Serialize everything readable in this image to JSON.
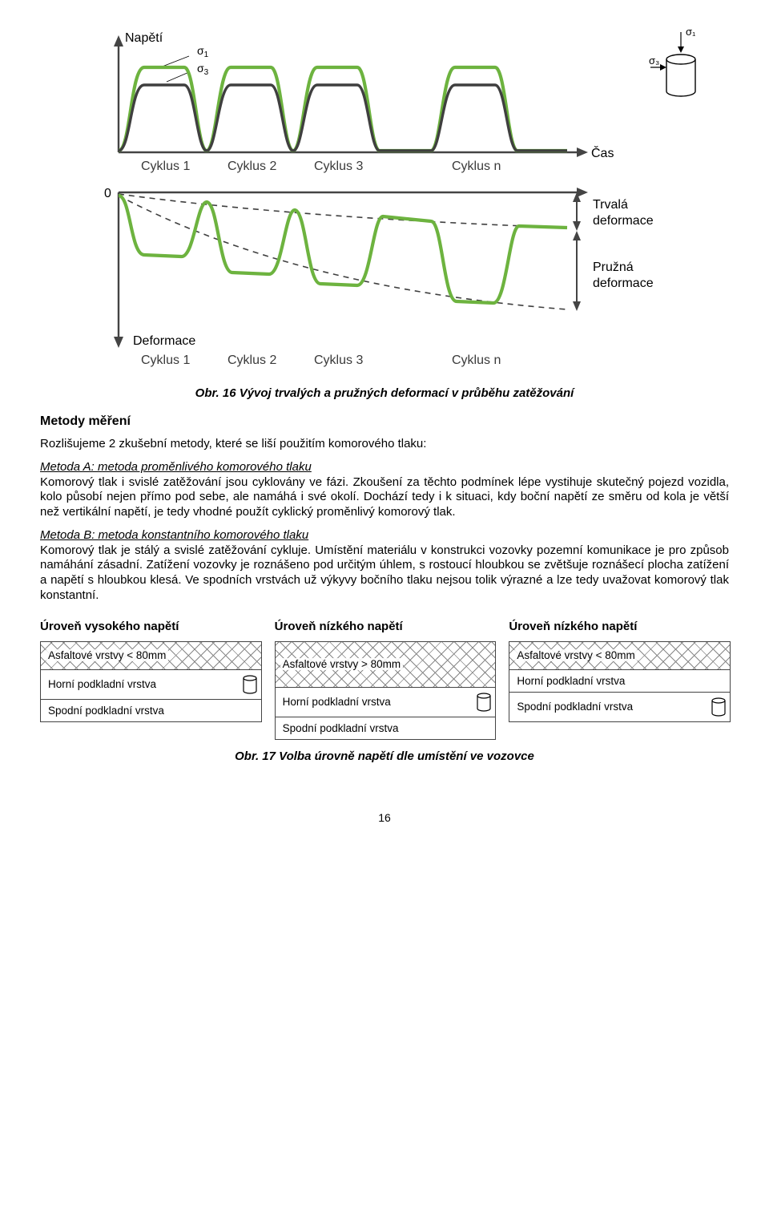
{
  "fig16": {
    "yTopLabel": "Napětí",
    "sigma1": "σ",
    "sigma1sub": "1",
    "sigma3": "σ",
    "sigma3sub": "3",
    "xRightLabel": "Čas",
    "zeroLabel": "0",
    "yBottomLabel": "Deformace",
    "cycles": [
      "Cyklus 1",
      "Cyklus 2",
      "Cyklus 3",
      "Cyklus n"
    ],
    "rightLabels": {
      "trvala": "Trvalá",
      "trvala2": "deformace",
      "pruzna": "Pružná",
      "pruzna2": "deformace"
    },
    "colors": {
      "green": "#6db33f",
      "dark": "#3f3f3f",
      "dashed": "#3f3f3f",
      "grayAxis": "#444"
    },
    "caption": "Obr. 16 Vývoj trvalých a pružných deformací v průběhu zatěžování"
  },
  "text": {
    "metodyHead": "Metody měření",
    "intro": "Rozlišujeme 2 zkušební metody, které se liší použitím komorového tlaku:",
    "metodaA_title": "Metoda A: metoda proměnlivého komorového tlaku",
    "metodaA_body": "Komorový tlak i svislé zatěžování jsou cyklovány ve fázi. Zkoušení za těchto podmínek lépe vystihuje skutečný pojezd vozidla, kolo působí nejen přímo pod sebe, ale namáhá i své okolí. Dochází tedy i k situaci, kdy boční napětí ze směru od kola je větší než vertikální napětí, je tedy vhodné použít cyklický proměnlivý komorový tlak.",
    "metodaB_title": "Metoda B: metoda konstantního komorového tlaku",
    "metodaB_body": "Komorový tlak je stálý a svislé zatěžování cykluje. Umístění materiálu v konstrukci vozovky pozemní komunikace je pro způsob namáhání zásadní. Zatížení vozovky je roznášeno pod určitým úhlem, s rostoucí hloubkou se zvětšuje roznášecí plocha zatížení a napětí s hloubkou klesá. Ve spodních vrstvách už výkyvy bočního tlaku nejsou tolik výrazné a lze tedy uvažovat komorový tlak konstantní."
  },
  "fig17": {
    "columns": [
      {
        "title": "Úroveň vysokého napětí",
        "layers": [
          {
            "text": "Asfaltové vrstvy < 80mm",
            "hatch": true
          },
          {
            "text": "Horní podkladní vrstva",
            "cylinder": true
          },
          {
            "text": "Spodní podkladní vrstva"
          }
        ]
      },
      {
        "title": "Úroveň nízkého napětí",
        "layers": [
          {
            "text": "Asfaltové vrstvy > 80mm",
            "hatch": true,
            "tall": true
          },
          {
            "text": "Horní podkladní vrstva",
            "cylinder": true
          },
          {
            "text": "Spodní podkladní vrstva"
          }
        ]
      },
      {
        "title": "Úroveň nízkého napětí",
        "layers": [
          {
            "text": "Asfaltové vrstvy < 80mm",
            "hatch": true
          },
          {
            "text": "Horní podkladní vrstva"
          },
          {
            "text": "Spodní podkladní vrstva",
            "cylinder": true
          }
        ]
      }
    ],
    "caption": "Obr. 17 Volba úrovně napětí dle umístění ve vozovce"
  },
  "pageNumber": "16",
  "insetLabels": {
    "sigma1": "σ₁",
    "sigma3": "σ₃"
  }
}
